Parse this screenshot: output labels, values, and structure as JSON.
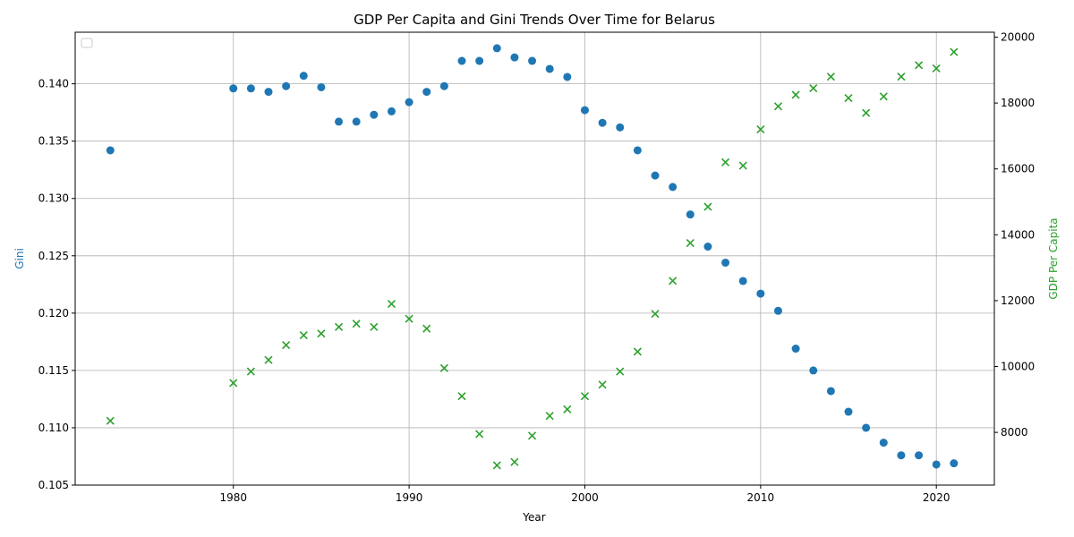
{
  "chart_data": {
    "type": "scatter",
    "title": "GDP Per Capita and Gini Trends Over Time for Belarus",
    "xlabel": "Year",
    "ylabel_left": "Gini",
    "ylabel_right": "GDP Per Capita",
    "xlim": [
      1971,
      2023.3
    ],
    "xticks": [
      1980,
      1990,
      2000,
      2010,
      2020
    ],
    "ylim_left": [
      0.105,
      0.1445
    ],
    "yticks_left": [
      0.105,
      0.11,
      0.115,
      0.12,
      0.125,
      0.13,
      0.135,
      0.14
    ],
    "yticks_left_labels": [
      "0.105",
      "0.110",
      "0.115",
      "0.120",
      "0.125",
      "0.130",
      "0.135",
      "0.140"
    ],
    "ylim_right": [
      6400,
      20150
    ],
    "yticks_right": [
      8000,
      10000,
      12000,
      14000,
      16000,
      18000,
      20000
    ],
    "grid": true,
    "legend": "upper-left, empty",
    "series": [
      {
        "axis": "left",
        "marker": "circle",
        "color": "#1f77b4",
        "x": [
          1973,
          1980,
          1981,
          1982,
          1983,
          1984,
          1985,
          1986,
          1987,
          1988,
          1989,
          1990,
          1991,
          1992,
          1993,
          1994,
          1995,
          1996,
          1997,
          1998,
          1999,
          2000,
          2001,
          2002,
          2003,
          2004,
          2005,
          2006,
          2007,
          2008,
          2009,
          2010,
          2011,
          2012,
          2013,
          2014,
          2015,
          2016,
          2017,
          2018,
          2019,
          2020,
          2021
        ],
        "y": [
          0.1342,
          0.1396,
          0.1396,
          0.1393,
          0.1398,
          0.1407,
          0.1397,
          0.1367,
          0.1367,
          0.1373,
          0.1376,
          0.1384,
          0.1393,
          0.1398,
          0.142,
          0.142,
          0.1431,
          0.1423,
          0.142,
          0.1413,
          0.1406,
          0.1377,
          0.1366,
          0.1362,
          0.1342,
          0.132,
          0.131,
          0.1286,
          0.1258,
          0.1244,
          0.1228,
          0.1217,
          0.1202,
          0.1169,
          0.115,
          0.1132,
          0.1114,
          0.11,
          0.1087,
          0.1076,
          0.1076,
          0.1068,
          0.1069
        ]
      },
      {
        "axis": "right",
        "marker": "x",
        "color": "#2ca02c",
        "x": [
          1973,
          1980,
          1981,
          1982,
          1983,
          1984,
          1985,
          1986,
          1987,
          1988,
          1989,
          1990,
          1991,
          1992,
          1993,
          1994,
          1995,
          1996,
          1997,
          1998,
          1999,
          2000,
          2001,
          2002,
          2003,
          2004,
          2005,
          2006,
          2007,
          2008,
          2009,
          2010,
          2011,
          2012,
          2013,
          2014,
          2015,
          2016,
          2017,
          2018,
          2019,
          2020,
          2021
        ],
        "y": [
          8350,
          9500,
          9850,
          10200,
          10650,
          10950,
          11000,
          11200,
          11300,
          11200,
          11900,
          11450,
          11150,
          9950,
          9100,
          7950,
          7000,
          7100,
          7900,
          8500,
          8700,
          9100,
          9450,
          9850,
          10450,
          11600,
          12600,
          13750,
          14850,
          16200,
          16100,
          17200,
          17900,
          18250,
          18450,
          18800,
          18150,
          17700,
          18200,
          18800,
          19150,
          19050,
          19550
        ]
      }
    ]
  }
}
